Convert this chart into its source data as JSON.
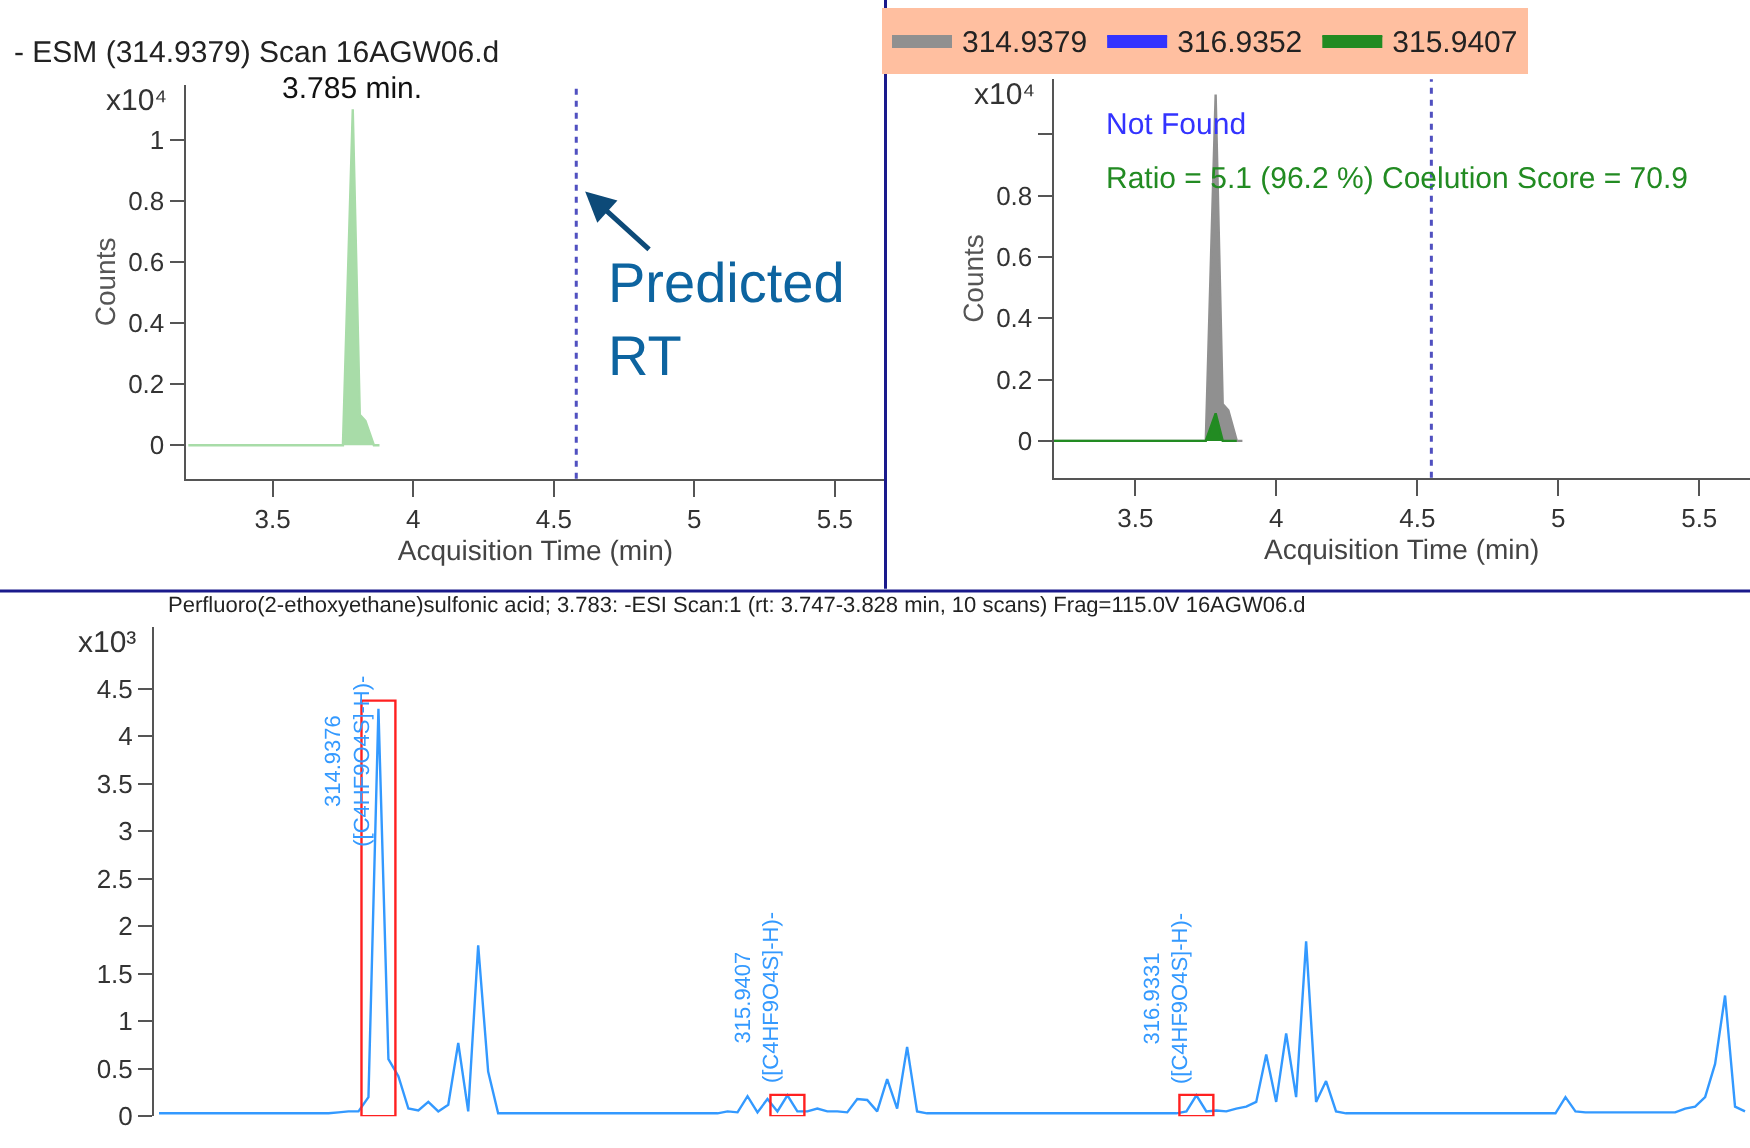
{
  "chart_data": [
    {
      "type": "area",
      "title": "- ESM (314.9379) Scan 16AGW06.d",
      "xlabel": "Acquisition Time (min)",
      "ylabel": "Counts",
      "xlim": [
        3.19,
        5.68
      ],
      "xticks": [
        3.5,
        4,
        4.5,
        5,
        5.5
      ],
      "ylim": [
        -0.11,
        1.18
      ],
      "yticks": [
        0,
        0.2,
        0.4,
        0.6,
        0.8,
        1
      ],
      "grid": false,
      "legend": false,
      "marker": "none",
      "line_style": "solid",
      "series": [
        {
          "color": "#a8dca8",
          "x": [
            3.2,
            3.75,
            3.785,
            3.81,
            3.83,
            3.86,
            3.88
          ],
          "values": [
            0,
            0,
            1.1,
            0.1,
            0.08,
            0,
            0
          ]
        }
      ],
      "ref_lines": [
        {
          "axis": "x",
          "value": 4.58,
          "color": "#5050c0",
          "line_style": "dotted"
        }
      ],
      "annotations": [
        "x10⁴",
        {
          "text": "3.785 min.",
          "x": 3.785,
          "y": 1.1
        },
        "Predicted\nRT"
      ]
    },
    {
      "type": "area",
      "xlabel": "Acquisition Time (min)",
      "ylabel": "Counts",
      "xlim": [
        3.21,
        5.68
      ],
      "xticks": [
        3.5,
        4,
        4.5,
        5,
        5.5
      ],
      "ylim": [
        -0.12,
        1.18
      ],
      "yticks": [
        0,
        0.2,
        0.4,
        0.6,
        0.8,
        {
          "value": 1,
          "label": null
        }
      ],
      "grid": false,
      "legend": "top",
      "marker": "none",
      "line_style": "solid",
      "series": [
        {
          "name": "314.9379",
          "color": "#909090",
          "x": [
            3.21,
            3.75,
            3.785,
            3.81,
            3.83,
            3.86,
            3.88
          ],
          "values": [
            0,
            0,
            1.13,
            0.12,
            0.1,
            0,
            0
          ]
        },
        {
          "name": "316.9352",
          "color": "#3333ff"
        },
        {
          "name": "315.9407",
          "color": "#228b22",
          "x": [
            3.21,
            3.75,
            3.785,
            3.81,
            3.86
          ],
          "values": [
            0,
            0,
            0.09,
            0,
            0
          ]
        }
      ],
      "ref_lines": [
        {
          "axis": "x",
          "value": 4.55,
          "color": "#5050c0",
          "line_style": "dotted"
        }
      ],
      "annotations": [
        "x10⁴",
        "Not Found",
        "Ratio = 5.1 (96.2 %) Coelution Score = 70.9"
      ]
    },
    {
      "type": "line",
      "title": "Perfluoro(2-ethoxyethane)sulfonic acid; 3.783: -ESI Scan:1 (rt: 3.747-3.828 min, 10 scans) Frag=115.0V 16AGW06.d",
      "categories": [
        null,
        null,
        null,
        null,
        null,
        null,
        null,
        null,
        null,
        null,
        null,
        null,
        null,
        null,
        null,
        null,
        null,
        null,
        null,
        null,
        null,
        null,
        null,
        null,
        null,
        null,
        null,
        null,
        null,
        null,
        null,
        null,
        null,
        null,
        null,
        null,
        null,
        null,
        null,
        null,
        null,
        null,
        null,
        null,
        null,
        null,
        null,
        null,
        null,
        null,
        null,
        null,
        null,
        null,
        null,
        null,
        null,
        null,
        null,
        null,
        null,
        null,
        null,
        null,
        null,
        null,
        null,
        null,
        null,
        null,
        null,
        null,
        null,
        null,
        null,
        null,
        null,
        null,
        null,
        null,
        null,
        null,
        null,
        null,
        null,
        null,
        null,
        null,
        null,
        null,
        null,
        null,
        null,
        null,
        null,
        null,
        null,
        null,
        null,
        null,
        null,
        null,
        null,
        null,
        null,
        null,
        null,
        null,
        null,
        null,
        null,
        null,
        null,
        null,
        null,
        null,
        null,
        null,
        null,
        null,
        null,
        null,
        null,
        null,
        null,
        null,
        null,
        null,
        null,
        null,
        null,
        null,
        null,
        null,
        null,
        null,
        null,
        null,
        null,
        null,
        null,
        null,
        null,
        null,
        null,
        null,
        null,
        null,
        null,
        null,
        null,
        null,
        null,
        null,
        null,
        null,
        null,
        null,
        null,
        null
      ],
      "ylim": [
        0,
        5.15
      ],
      "yticks": [
        0,
        0.5,
        1,
        1.5,
        2,
        2.5,
        3,
        3.5,
        4,
        4.5
      ],
      "tick_labels": "y",
      "grid": false,
      "legend": false,
      "marker": "none",
      "line_style": "solid",
      "series": [
        {
          "color": "#3399ff",
          "values": [
            0.03,
            0.03,
            0.03,
            0.03,
            0.03,
            0.03,
            0.03,
            0.03,
            0.03,
            0.03,
            0.03,
            0.03,
            0.03,
            0.03,
            0.03,
            0.03,
            0.03,
            0.03,
            0.04,
            0.05,
            0.05,
            0.2,
            4.29,
            0.6,
            0.42,
            0.08,
            0.06,
            0.15,
            0.05,
            0.12,
            0.77,
            0.05,
            1.8,
            0.47,
            0.03,
            0.03,
            0.03,
            0.03,
            0.03,
            0.03,
            0.03,
            0.03,
            0.03,
            0.03,
            0.03,
            0.03,
            0.03,
            0.03,
            0.03,
            0.03,
            0.03,
            0.03,
            0.03,
            0.03,
            0.03,
            0.03,
            0.03,
            0.05,
            0.04,
            0.21,
            0.04,
            0.18,
            0.05,
            0.22,
            0.05,
            0.05,
            0.08,
            0.05,
            0.05,
            0.04,
            0.18,
            0.17,
            0.05,
            0.39,
            0.08,
            0.73,
            0.05,
            0.03,
            0.03,
            0.03,
            0.03,
            0.03,
            0.03,
            0.03,
            0.03,
            0.03,
            0.03,
            0.03,
            0.03,
            0.03,
            0.03,
            0.03,
            0.03,
            0.03,
            0.03,
            0.03,
            0.03,
            0.03,
            0.03,
            0.03,
            0.03,
            0.03,
            0.03,
            0.05,
            0.22,
            0.05,
            0.06,
            0.05,
            0.08,
            0.1,
            0.15,
            0.65,
            0.15,
            0.87,
            0.2,
            1.84,
            0.15,
            0.37,
            0.05,
            0.03,
            0.03,
            0.03,
            0.03,
            0.03,
            0.03,
            0.03,
            0.03,
            0.03,
            0.03,
            0.03,
            0.03,
            0.03,
            0.03,
            0.03,
            0.03,
            0.03,
            0.03,
            0.03,
            0.03,
            0.03,
            0.03,
            0.2,
            0.05,
            0.04,
            0.04,
            0.04,
            0.04,
            0.04,
            0.04,
            0.04,
            0.04,
            0.04,
            0.04,
            0.08,
            0.1,
            0.2,
            0.55,
            1.27,
            0.1,
            0.05
          ]
        }
      ],
      "annotations": [
        "x10³",
        "314.9376\n([C4HF9O4S]-H)-",
        "315.9407\n([C4HF9O4S]-H)-",
        "316.9331\n([C4HF9O4S]-H)-"
      ]
    }
  ]
}
